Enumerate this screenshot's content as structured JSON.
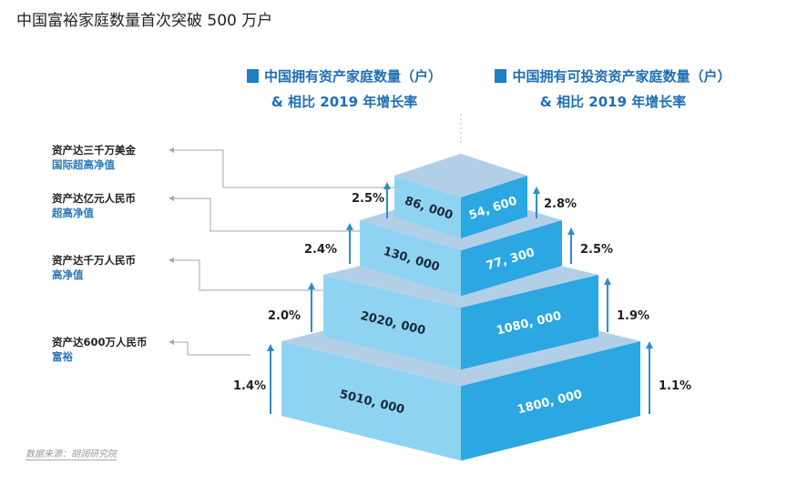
{
  "title": "中国富裕家庭数量首次突破 500 万户",
  "legend": [
    {
      "line1": "中国拥有资产家庭数量（户）",
      "line2": "& 相比 2019 年增长率",
      "color": "#1e7fc4"
    },
    {
      "line1": "中国拥有可投资资产家庭数量（户）",
      "line2": "& 相比 2019 年增长率",
      "color": "#1e7fc4"
    }
  ],
  "colors": {
    "left_face": "#8fd3f3",
    "right_face": "#2ba7e2",
    "top_face": "#b3cfe8",
    "arrow": "#2a8fd0"
  },
  "tiers": [
    {
      "criterion": "资产达三千万美金",
      "category": "国际超高净值",
      "assets_households": "86, 000",
      "assets_growth": "2.5%",
      "investable_households": "54, 600",
      "investable_growth": "2.8%"
    },
    {
      "criterion": "资产达亿元人民币",
      "category": "超高净值",
      "assets_households": "130, 000",
      "assets_growth": "2.4%",
      "investable_households": "77, 300",
      "investable_growth": "2.5%"
    },
    {
      "criterion": "资产达千万人民币",
      "category": "高净值",
      "assets_households": "2020, 000",
      "assets_growth": "2.0%",
      "investable_households": "1080, 000",
      "investable_growth": "1.9%"
    },
    {
      "criterion": "资产达600万人民币",
      "category": "富裕",
      "assets_households": "5010, 000",
      "assets_growth": "1.4%",
      "investable_households": "1800, 000",
      "investable_growth": "1.1%"
    }
  ],
  "source": "数据来源：胡润研究院"
}
